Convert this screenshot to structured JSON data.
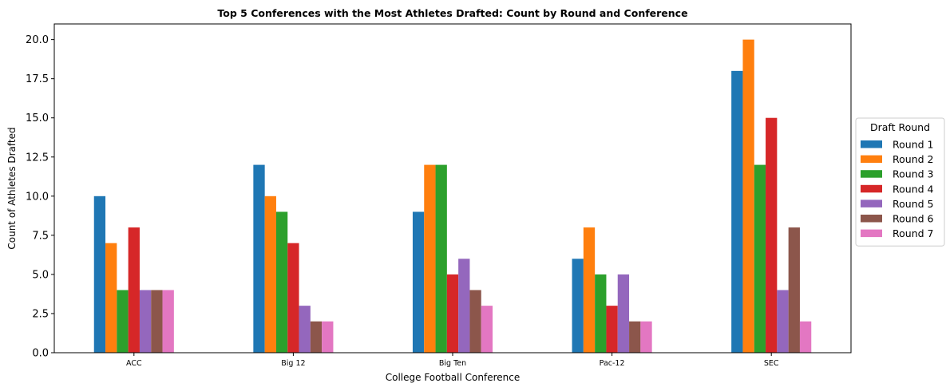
{
  "chart_data": {
    "type": "bar",
    "title": "Top 5 Conferences with the Most Athletes Drafted: Count by Round and Conference",
    "xlabel": "College Football Conference",
    "ylabel": "Count of Athletes Drafted",
    "ylim": [
      0,
      21
    ],
    "yticks": [
      "0.0",
      "2.5",
      "5.0",
      "7.5",
      "10.0",
      "12.5",
      "15.0",
      "17.5",
      "20.0"
    ],
    "categories": [
      "ACC",
      "Big 12",
      "Big Ten",
      "Pac-12",
      "SEC"
    ],
    "legend": {
      "title": "Draft Round",
      "placement": "center-right-outside"
    },
    "grid": false,
    "series": [
      {
        "name": "Round 1",
        "color": "#1f77b4",
        "values": [
          10,
          12,
          9,
          6,
          18
        ]
      },
      {
        "name": "Round 2",
        "color": "#ff7f0e",
        "values": [
          7,
          10,
          12,
          8,
          20
        ]
      },
      {
        "name": "Round 3",
        "color": "#2ca02c",
        "values": [
          4,
          9,
          12,
          5,
          12
        ]
      },
      {
        "name": "Round 4",
        "color": "#d62728",
        "values": [
          8,
          7,
          5,
          3,
          15
        ]
      },
      {
        "name": "Round 5",
        "color": "#9467bd",
        "values": [
          4,
          3,
          6,
          5,
          4
        ]
      },
      {
        "name": "Round 6",
        "color": "#8c564b",
        "values": [
          4,
          2,
          4,
          2,
          8
        ]
      },
      {
        "name": "Round 7",
        "color": "#e377c2",
        "values": [
          4,
          2,
          3,
          2,
          2
        ]
      }
    ]
  }
}
